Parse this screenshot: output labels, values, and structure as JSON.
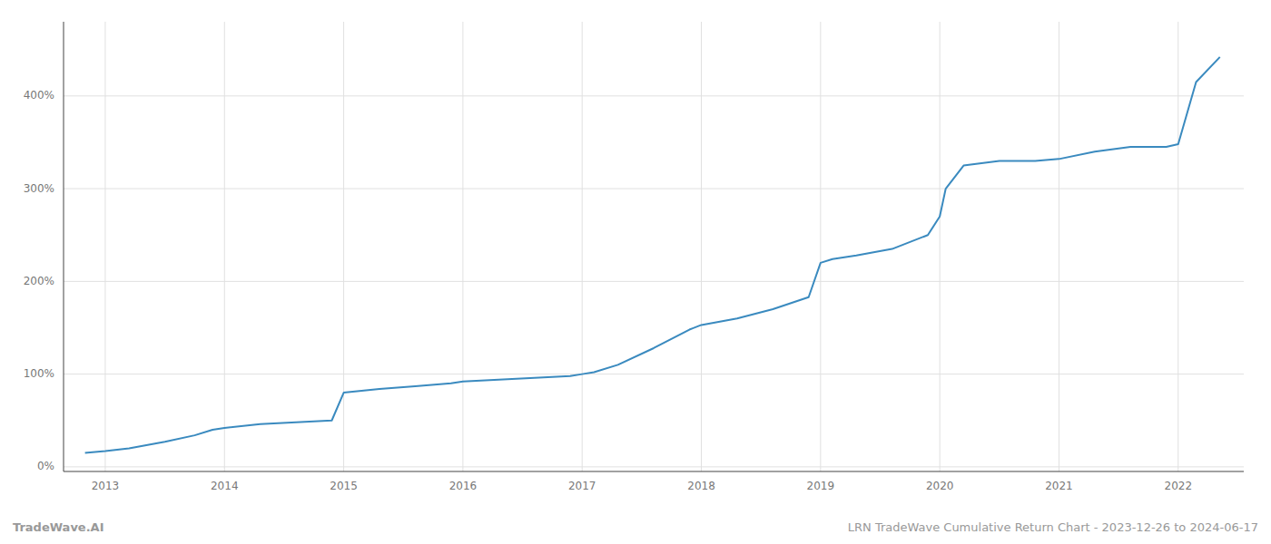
{
  "chart_data": {
    "type": "line",
    "x": [
      2012.83,
      2013.0,
      2013.2,
      2013.5,
      2013.75,
      2013.9,
      2014.0,
      2014.3,
      2014.6,
      2014.9,
      2015.0,
      2015.3,
      2015.6,
      2015.9,
      2016.0,
      2016.3,
      2016.6,
      2016.9,
      2017.0,
      2017.1,
      2017.3,
      2017.6,
      2017.9,
      2018.0,
      2018.3,
      2018.6,
      2018.9,
      2019.0,
      2019.1,
      2019.3,
      2019.6,
      2019.9,
      2020.0,
      2020.05,
      2020.2,
      2020.5,
      2020.8,
      2021.0,
      2021.3,
      2021.6,
      2021.9,
      2022.0,
      2022.15,
      2022.35
    ],
    "values": [
      15,
      17,
      20,
      27,
      34,
      40,
      42,
      46,
      48,
      50,
      80,
      84,
      87,
      90,
      92,
      94,
      96,
      98,
      100,
      102,
      110,
      128,
      148,
      153,
      160,
      170,
      183,
      220,
      224,
      228,
      235,
      250,
      270,
      300,
      325,
      330,
      330,
      332,
      340,
      345,
      345,
      348,
      415,
      442
    ],
    "color": "#3a8abf",
    "xlim": [
      2012.65,
      2022.55
    ],
    "xticks": [
      2013,
      2014,
      2015,
      2016,
      2017,
      2018,
      2019,
      2020,
      2021,
      2022
    ],
    "ylim": [
      -5,
      480
    ],
    "yticks": [
      {
        "value": 0,
        "label": "0%"
      },
      {
        "value": 100,
        "label": "100%"
      },
      {
        "value": 200,
        "label": "200%"
      },
      {
        "value": 300,
        "label": "300%"
      },
      {
        "value": 400,
        "label": "400%"
      }
    ],
    "grid": true,
    "annotations": [
      "TradeWave.AI",
      "LRN TradeWave Cumulative Return Chart - 2023-12-26 to 2024-06-17"
    ]
  }
}
